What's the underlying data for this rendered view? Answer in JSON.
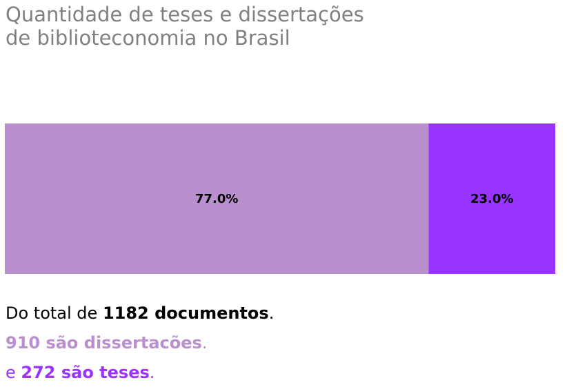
{
  "title": {
    "line1": "Quantidade de teses e dissertações",
    "line2": "de biblioteconomia no Brasil"
  },
  "chart_data": {
    "type": "bar",
    "orientation": "horizontal-stacked-100",
    "categories": [
      "dissertações",
      "teses"
    ],
    "values": [
      77.0,
      23.0
    ],
    "labels": [
      "77.0%",
      "23.0%"
    ],
    "colors": [
      "#ba8fce",
      "#9933ff"
    ],
    "xlim": [
      0,
      100
    ],
    "grid": false
  },
  "summary": {
    "line1": {
      "prefix": "Do total de ",
      "bold": "1182 documentos",
      "suffix": "."
    },
    "line2": {
      "prefix": "",
      "bold": "910 são dissertacões",
      "suffix": ".",
      "color": "#ba8fce"
    },
    "line3": {
      "prefix": "e ",
      "bold": "272 são teses",
      "suffix": ".",
      "color": "#9933ff"
    }
  }
}
